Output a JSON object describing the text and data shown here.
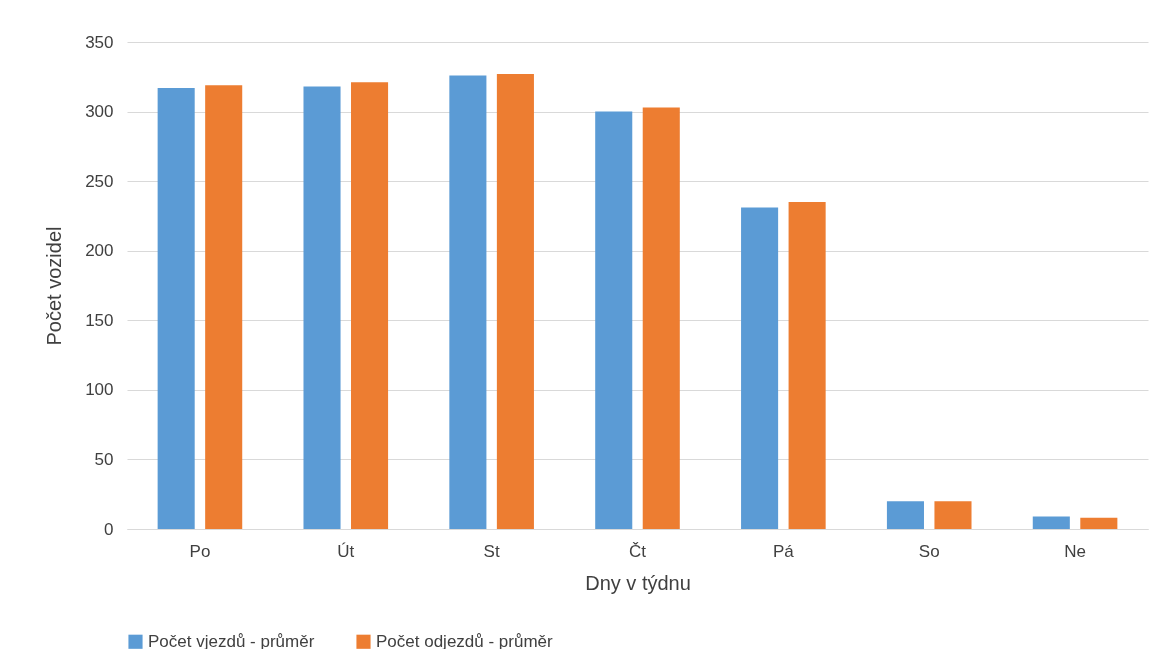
{
  "chart_data": {
    "type": "bar",
    "xlabel": "Dny v týdnu",
    "ylabel": "Počet vozidel",
    "categories": [
      "Po",
      "Út",
      "St",
      "Čt",
      "Pá",
      "So",
      "Ne"
    ],
    "series": [
      {
        "name": "Počet vjezdů - průměr",
        "color": "#5b9bd5",
        "values": [
          317,
          318,
          326,
          300,
          231,
          20,
          9
        ]
      },
      {
        "name": "Počet odjezdů - průměr",
        "color": "#ed7d31",
        "values": [
          319,
          321,
          327,
          303,
          235,
          20,
          8
        ]
      }
    ],
    "ylim": [
      0,
      350
    ],
    "yticks": [
      0,
      50,
      100,
      150,
      200,
      250,
      300,
      350
    ],
    "grid": "y",
    "legend": "bottom"
  }
}
